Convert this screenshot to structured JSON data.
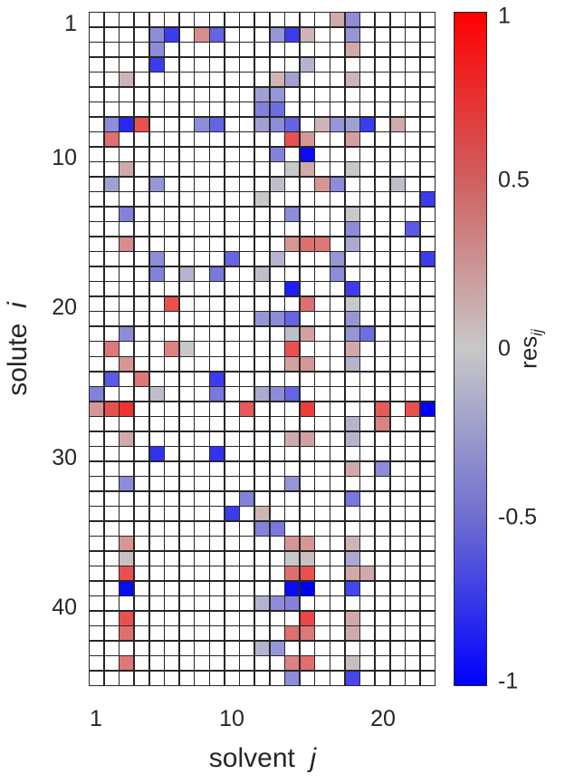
{
  "chart_data": {
    "type": "heatmap",
    "title": "",
    "xlabel": "solvent",
    "xlabel_var": "j",
    "ylabel": "solute",
    "ylabel_var": "i",
    "colorbar_label": "res",
    "colorbar_sub": "ij",
    "n_rows": 45,
    "n_cols": 23,
    "x_ticks": [
      1,
      10,
      20
    ],
    "y_ticks": [
      1,
      10,
      20,
      30,
      40
    ],
    "colorbar_ticks": [
      "1",
      "0.5",
      "0",
      "-0.5",
      "-1"
    ],
    "clim": [
      -1,
      1
    ],
    "colormap": {
      "low": "#0000ff",
      "mid": "#c8c8c8",
      "high": "#ff0000",
      "blank": "#ffffff"
    },
    "grid_lines": true,
    "cells_format": "[row i, col j, res_ij]; unlisted cells are blank (no value)",
    "cells": [
      [
        1,
        17,
        0.15
      ],
      [
        1,
        18,
        -0.3
      ],
      [
        2,
        5,
        -0.3
      ],
      [
        2,
        6,
        -0.7
      ],
      [
        2,
        8,
        0.3
      ],
      [
        2,
        9,
        -0.5
      ],
      [
        2,
        13,
        -0.25
      ],
      [
        2,
        14,
        -0.7
      ],
      [
        2,
        15,
        0.1
      ],
      [
        2,
        18,
        -0.25
      ],
      [
        3,
        5,
        -0.3
      ],
      [
        3,
        18,
        0.15
      ],
      [
        4,
        5,
        -0.7
      ],
      [
        4,
        15,
        -0.1
      ],
      [
        5,
        3,
        0.1
      ],
      [
        5,
        13,
        0.1
      ],
      [
        5,
        14,
        -0.2
      ],
      [
        5,
        18,
        0.1
      ],
      [
        6,
        12,
        -0.2
      ],
      [
        6,
        13,
        -0.25
      ],
      [
        7,
        12,
        -0.35
      ],
      [
        7,
        13,
        -0.45
      ],
      [
        8,
        2,
        -0.3
      ],
      [
        8,
        3,
        -0.8
      ],
      [
        8,
        4,
        0.6
      ],
      [
        8,
        8,
        -0.3
      ],
      [
        8,
        9,
        -0.5
      ],
      [
        8,
        12,
        -0.2
      ],
      [
        8,
        13,
        -0.3
      ],
      [
        8,
        14,
        -0.5
      ],
      [
        8,
        16,
        0.1
      ],
      [
        8,
        17,
        -0.25
      ],
      [
        8,
        18,
        -0.2
      ],
      [
        8,
        19,
        -0.7
      ],
      [
        8,
        21,
        0.15
      ],
      [
        9,
        2,
        0.45
      ],
      [
        9,
        14,
        0.6
      ],
      [
        9,
        15,
        0.25
      ],
      [
        9,
        18,
        0.2
      ],
      [
        10,
        13,
        -0.35
      ],
      [
        10,
        15,
        -0.95
      ],
      [
        11,
        3,
        0.15
      ],
      [
        11,
        14,
        0.0
      ],
      [
        11,
        15,
        0.15
      ],
      [
        11,
        18,
        0.0
      ],
      [
        12,
        2,
        -0.2
      ],
      [
        12,
        5,
        -0.25
      ],
      [
        12,
        13,
        -0.05
      ],
      [
        12,
        16,
        0.25
      ],
      [
        12,
        17,
        -0.3
      ],
      [
        12,
        21,
        -0.05
      ],
      [
        13,
        12,
        0.0
      ],
      [
        13,
        23,
        -0.7
      ],
      [
        14,
        3,
        -0.35
      ],
      [
        14,
        14,
        -0.3
      ],
      [
        14,
        18,
        0.0
      ],
      [
        15,
        18,
        -0.3
      ],
      [
        15,
        22,
        -0.55
      ],
      [
        16,
        3,
        0.3
      ],
      [
        16,
        14,
        0.25
      ],
      [
        16,
        15,
        0.45
      ],
      [
        16,
        16,
        0.4
      ],
      [
        16,
        18,
        -0.15
      ],
      [
        17,
        5,
        -0.3
      ],
      [
        17,
        10,
        -0.5
      ],
      [
        17,
        13,
        -0.1
      ],
      [
        17,
        17,
        -0.25
      ],
      [
        17,
        23,
        -0.7
      ],
      [
        18,
        5,
        -0.35
      ],
      [
        18,
        7,
        -0.1
      ],
      [
        18,
        9,
        -0.4
      ],
      [
        18,
        12,
        -0.05
      ],
      [
        18,
        17,
        -0.3
      ],
      [
        19,
        14,
        -0.85
      ],
      [
        19,
        18,
        -0.7
      ],
      [
        20,
        6,
        0.6
      ],
      [
        20,
        15,
        0.45
      ],
      [
        20,
        18,
        0.0
      ],
      [
        21,
        12,
        -0.25
      ],
      [
        21,
        13,
        -0.3
      ],
      [
        21,
        14,
        -0.5
      ],
      [
        21,
        18,
        -0.25
      ],
      [
        22,
        3,
        -0.3
      ],
      [
        22,
        14,
        -0.05
      ],
      [
        22,
        15,
        0.2
      ],
      [
        22,
        18,
        -0.25
      ],
      [
        22,
        19,
        -0.45
      ],
      [
        23,
        2,
        0.4
      ],
      [
        23,
        6,
        0.35
      ],
      [
        23,
        7,
        0.0
      ],
      [
        23,
        14,
        0.6
      ],
      [
        23,
        18,
        0.15
      ],
      [
        24,
        3,
        0.25
      ],
      [
        24,
        14,
        0.2
      ],
      [
        24,
        15,
        0.25
      ],
      [
        24,
        18,
        -0.1
      ],
      [
        25,
        2,
        -0.55
      ],
      [
        25,
        4,
        0.4
      ],
      [
        25,
        9,
        -0.7
      ],
      [
        26,
        1,
        -0.35
      ],
      [
        26,
        5,
        -0.05
      ],
      [
        26,
        9,
        -0.4
      ],
      [
        26,
        12,
        -0.15
      ],
      [
        26,
        13,
        -0.3
      ],
      [
        26,
        14,
        -0.5
      ],
      [
        27,
        1,
        0.25
      ],
      [
        27,
        2,
        0.6
      ],
      [
        27,
        3,
        0.75
      ],
      [
        27,
        11,
        0.55
      ],
      [
        27,
        15,
        0.7
      ],
      [
        27,
        20,
        0.55
      ],
      [
        27,
        22,
        0.6
      ],
      [
        27,
        23,
        -1.0
      ],
      [
        28,
        18,
        -0.1
      ],
      [
        28,
        20,
        0.35
      ],
      [
        29,
        3,
        0.15
      ],
      [
        29,
        14,
        0.15
      ],
      [
        29,
        15,
        0.2
      ],
      [
        29,
        18,
        -0.1
      ],
      [
        30,
        5,
        -0.75
      ],
      [
        30,
        9,
        -0.75
      ],
      [
        31,
        18,
        0.15
      ],
      [
        31,
        20,
        -0.3
      ],
      [
        32,
        3,
        -0.3
      ],
      [
        32,
        14,
        -0.25
      ],
      [
        33,
        11,
        -0.35
      ],
      [
        33,
        18,
        -0.4
      ],
      [
        34,
        10,
        -0.7
      ],
      [
        34,
        12,
        0.1
      ],
      [
        35,
        12,
        -0.35
      ],
      [
        35,
        13,
        -0.4
      ],
      [
        36,
        3,
        0.25
      ],
      [
        36,
        14,
        0.25
      ],
      [
        36,
        15,
        0.25
      ],
      [
        36,
        18,
        0.1
      ],
      [
        37,
        3,
        0.05
      ],
      [
        37,
        14,
        0.0
      ],
      [
        37,
        15,
        0.05
      ],
      [
        37,
        18,
        -0.15
      ],
      [
        38,
        3,
        0.6
      ],
      [
        38,
        14,
        0.45
      ],
      [
        38,
        15,
        0.6
      ],
      [
        38,
        18,
        0.15
      ],
      [
        38,
        19,
        0.15
      ],
      [
        39,
        3,
        -0.95
      ],
      [
        39,
        14,
        -0.95
      ],
      [
        39,
        15,
        -1.0
      ],
      [
        39,
        18,
        -0.65
      ],
      [
        40,
        12,
        -0.1
      ],
      [
        40,
        13,
        -0.3
      ],
      [
        40,
        14,
        -0.35
      ],
      [
        41,
        3,
        0.6
      ],
      [
        41,
        15,
        0.65
      ],
      [
        41,
        18,
        0.15
      ],
      [
        42,
        3,
        0.45
      ],
      [
        42,
        14,
        0.45
      ],
      [
        42,
        15,
        0.4
      ],
      [
        42,
        18,
        0.15
      ],
      [
        43,
        12,
        -0.1
      ],
      [
        43,
        13,
        -0.25
      ],
      [
        44,
        3,
        0.4
      ],
      [
        44,
        14,
        0.35
      ],
      [
        44,
        15,
        0.45
      ],
      [
        44,
        18,
        0.05
      ],
      [
        45,
        14,
        -0.3
      ],
      [
        45,
        18,
        -0.65
      ]
    ]
  }
}
